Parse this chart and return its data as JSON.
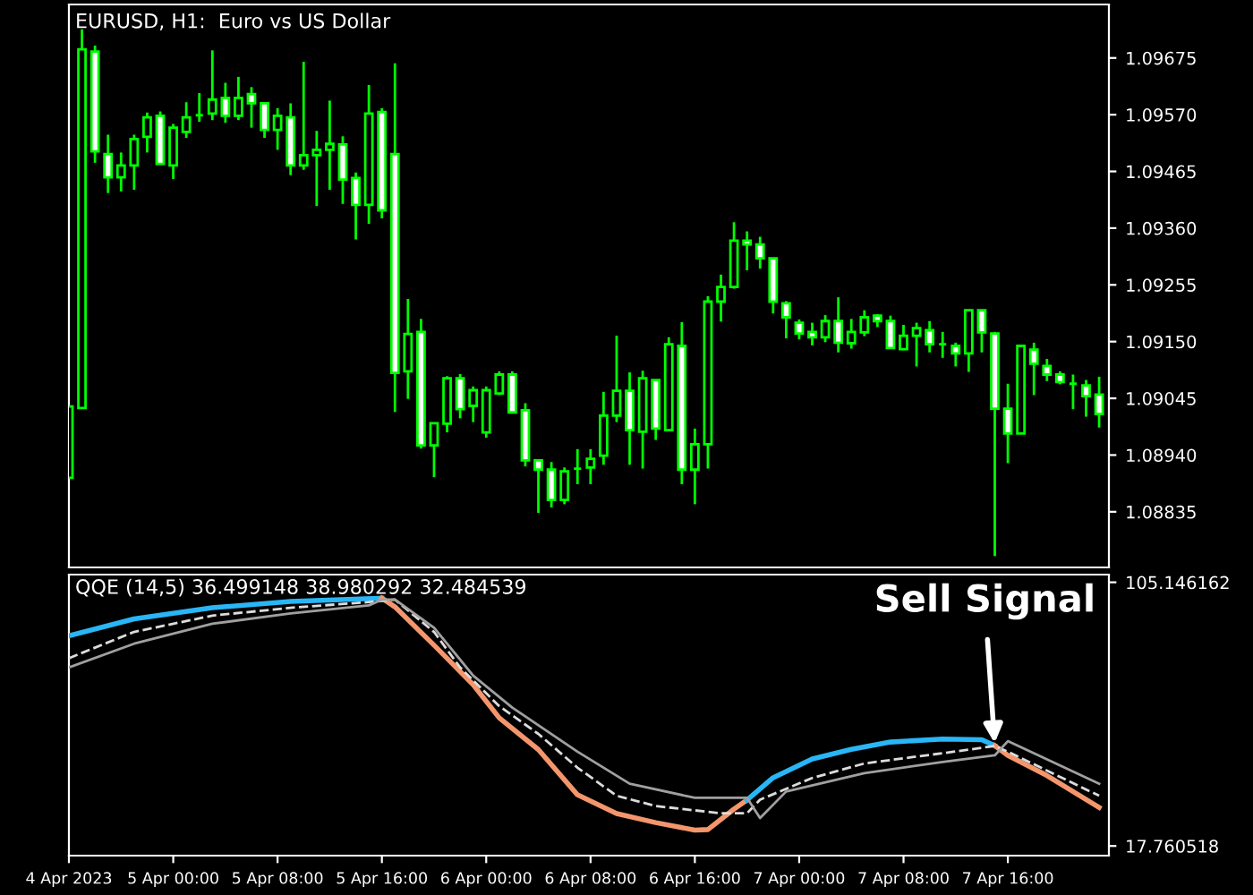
{
  "chart_data": [
    {
      "type": "candlestick",
      "title": "EURUSD, H1:  Euro vs US Dollar",
      "color": "#00ff00",
      "x": [
        "2023-04-04T16:00",
        "2023-04-04T17:00",
        "2023-04-04T18:00",
        "2023-04-04T19:00",
        "2023-04-04T20:00",
        "2023-04-04T21:00",
        "2023-04-04T22:00",
        "2023-04-04T23:00",
        "2023-04-05T00:00",
        "2023-04-05T01:00",
        "2023-04-05T02:00",
        "2023-04-05T03:00",
        "2023-04-05T04:00",
        "2023-04-05T05:00",
        "2023-04-05T06:00",
        "2023-04-05T07:00",
        "2023-04-05T08:00",
        "2023-04-05T09:00",
        "2023-04-05T10:00",
        "2023-04-05T11:00",
        "2023-04-05T12:00",
        "2023-04-05T13:00",
        "2023-04-05T14:00",
        "2023-04-05T15:00",
        "2023-04-05T16:00",
        "2023-04-05T17:00",
        "2023-04-05T18:00",
        "2023-04-05T19:00",
        "2023-04-05T20:00",
        "2023-04-05T21:00",
        "2023-04-05T22:00",
        "2023-04-05T23:00",
        "2023-04-06T00:00",
        "2023-04-06T01:00",
        "2023-04-06T02:00",
        "2023-04-06T03:00",
        "2023-04-06T04:00",
        "2023-04-06T05:00",
        "2023-04-06T06:00",
        "2023-04-06T07:00",
        "2023-04-06T08:00",
        "2023-04-06T09:00",
        "2023-04-06T10:00",
        "2023-04-06T11:00",
        "2023-04-06T12:00",
        "2023-04-06T13:00",
        "2023-04-06T14:00",
        "2023-04-06T15:00",
        "2023-04-06T16:00",
        "2023-04-06T17:00",
        "2023-04-06T18:00",
        "2023-04-06T19:00",
        "2023-04-06T20:00",
        "2023-04-06T21:00",
        "2023-04-06T22:00",
        "2023-04-06T23:00",
        "2023-04-07T00:00",
        "2023-04-07T01:00",
        "2023-04-07T02:00",
        "2023-04-07T03:00",
        "2023-04-07T04:00",
        "2023-04-07T05:00",
        "2023-04-07T06:00",
        "2023-04-07T07:00",
        "2023-04-07T08:00",
        "2023-04-07T09:00",
        "2023-04-07T10:00",
        "2023-04-07T11:00",
        "2023-04-07T12:00",
        "2023-04-07T13:00",
        "2023-04-07T14:00",
        "2023-04-07T15:00",
        "2023-04-07T16:00",
        "2023-04-07T17:00",
        "2023-04-07T18:00",
        "2023-04-07T19:00",
        "2023-04-07T20:00",
        "2023-04-07T21:00",
        "2023-04-07T22:00",
        "2023-04-07T23:00"
      ],
      "ohlc": [
        [
          1.08898,
          1.0903,
          1.08898,
          1.0903
        ],
        [
          1.09027,
          1.09728,
          1.09027,
          1.09691
        ],
        [
          1.09687,
          1.09698,
          1.09481,
          1.09502
        ],
        [
          1.09497,
          1.09533,
          1.09425,
          1.09454
        ],
        [
          1.09454,
          1.095,
          1.09428,
          1.09476
        ],
        [
          1.09476,
          1.09533,
          1.09431,
          1.09525
        ],
        [
          1.09529,
          1.09574,
          1.095,
          1.09565
        ],
        [
          1.09568,
          1.09576,
          1.09479,
          1.09479
        ],
        [
          1.09476,
          1.09553,
          1.09451,
          1.09546
        ],
        [
          1.09538,
          1.09593,
          1.09527,
          1.09565
        ],
        [
          1.09569,
          1.0961,
          1.09557,
          1.09569
        ],
        [
          1.09572,
          1.09689,
          1.0956,
          1.09598
        ],
        [
          1.09601,
          1.09629,
          1.09555,
          1.09568
        ],
        [
          1.09568,
          1.0964,
          1.0956,
          1.09601
        ],
        [
          1.09608,
          1.09621,
          1.09546,
          1.09591
        ],
        [
          1.09591,
          1.09591,
          1.09527,
          1.09542
        ],
        [
          1.09542,
          1.09582,
          1.09505,
          1.09568
        ],
        [
          1.09565,
          1.09591,
          1.09458,
          1.09476
        ],
        [
          1.09476,
          1.09668,
          1.09468,
          1.09495
        ],
        [
          1.09495,
          1.0954,
          1.09401,
          1.09505
        ],
        [
          1.09505,
          1.09596,
          1.09431,
          1.09516
        ],
        [
          1.09515,
          1.0953,
          1.09405,
          1.0945
        ],
        [
          1.09453,
          1.09463,
          1.09339,
          1.09403
        ],
        [
          1.09403,
          1.09625,
          1.09368,
          1.09572
        ],
        [
          1.09575,
          1.09582,
          1.09378,
          1.09393
        ],
        [
          1.09497,
          1.09665,
          1.0902,
          1.09092
        ],
        [
          1.09095,
          1.09229,
          1.09044,
          1.09164
        ],
        [
          1.09168,
          1.09192,
          1.08952,
          1.08958
        ],
        [
          1.08958,
          1.08999,
          1.08899,
          1.08999
        ],
        [
          1.08998,
          1.09086,
          1.08982,
          1.09082
        ],
        [
          1.09082,
          1.0909,
          1.09008,
          1.09025
        ],
        [
          1.09031,
          1.09067,
          1.09001,
          1.0906
        ],
        [
          1.08982,
          1.09067,
          1.08972,
          1.0906
        ],
        [
          1.09054,
          1.09095,
          1.09051,
          1.09089
        ],
        [
          1.09089,
          1.09095,
          1.09019,
          1.09019
        ],
        [
          1.09023,
          1.09036,
          1.08919,
          1.0893
        ],
        [
          1.0893,
          1.0893,
          1.08833,
          1.08913
        ],
        [
          1.08913,
          1.08927,
          1.08843,
          1.08857
        ],
        [
          1.08857,
          1.08917,
          1.08849,
          1.0891
        ],
        [
          1.08915,
          1.08951,
          1.08886,
          1.08915
        ],
        [
          1.08917,
          1.08951,
          1.08886,
          1.08933
        ],
        [
          1.08939,
          1.09057,
          1.08922,
          1.09013
        ],
        [
          1.09013,
          1.09161,
          1.09001,
          1.09059
        ],
        [
          1.09059,
          1.09093,
          1.08922,
          1.08986
        ],
        [
          1.08983,
          1.09096,
          1.08915,
          1.09082
        ],
        [
          1.09079,
          1.09079,
          1.08968,
          1.08989
        ],
        [
          1.08986,
          1.09158,
          1.08986,
          1.09145
        ],
        [
          1.09142,
          1.09186,
          1.08886,
          1.08913
        ],
        [
          1.08913,
          1.08989,
          1.08849,
          1.0896
        ],
        [
          1.0896,
          1.09234,
          1.08915,
          1.09224
        ],
        [
          1.09224,
          1.09274,
          1.09187,
          1.09251
        ],
        [
          1.09251,
          1.09371,
          1.09248,
          1.09337
        ],
        [
          1.09337,
          1.09354,
          1.09282,
          1.0933
        ],
        [
          1.0933,
          1.09344,
          1.09285,
          1.09304
        ],
        [
          1.09304,
          1.09304,
          1.09202,
          1.09224
        ],
        [
          1.09221,
          1.09225,
          1.09156,
          1.09195
        ],
        [
          1.09185,
          1.09191,
          1.09154,
          1.09165
        ],
        [
          1.09168,
          1.09185,
          1.09143,
          1.09158
        ],
        [
          1.09158,
          1.09199,
          1.09149,
          1.09188
        ],
        [
          1.09188,
          1.09232,
          1.0913,
          1.09148
        ],
        [
          1.09147,
          1.09192,
          1.09137,
          1.09168
        ],
        [
          1.09167,
          1.09208,
          1.0916,
          1.09195
        ],
        [
          1.09198,
          1.09201,
          1.09177,
          1.09188
        ],
        [
          1.09188,
          1.09198,
          1.09138,
          1.09138
        ],
        [
          1.09136,
          1.09181,
          1.09134,
          1.09161
        ],
        [
          1.09161,
          1.09185,
          1.09104,
          1.09175
        ],
        [
          1.09171,
          1.09188,
          1.0913,
          1.09145
        ],
        [
          1.09145,
          1.09168,
          1.0912,
          1.09145
        ],
        [
          1.09142,
          1.09148,
          1.09104,
          1.09128
        ],
        [
          1.09128,
          1.09208,
          1.09094,
          1.09208
        ],
        [
          1.09208,
          1.09208,
          1.0913,
          1.09167
        ],
        [
          1.09165,
          1.09168,
          1.08753,
          1.09026
        ],
        [
          1.09026,
          1.09072,
          1.08925,
          1.0898
        ],
        [
          1.0898,
          1.09142,
          1.0898,
          1.09142
        ],
        [
          1.09135,
          1.09148,
          1.09051,
          1.09109
        ],
        [
          1.09105,
          1.09118,
          1.09077,
          1.09089
        ],
        [
          1.09089,
          1.09095,
          1.09071,
          1.09075
        ],
        [
          1.09072,
          1.09089,
          1.09025,
          1.09072
        ],
        [
          1.09069,
          1.09079,
          1.09011,
          1.09049
        ],
        [
          1.09052,
          1.09085,
          1.08991,
          1.09016
        ]
      ],
      "xlim": [
        "2023-04-04T16:00",
        "2023-04-07T23:45"
      ],
      "ylim": [
        1.08732,
        1.09774
      ],
      "yticks": [
        1.09675,
        {
          "value": 1.0957,
          "label": "1.09570"
        },
        1.09465,
        {
          "value": 1.0936,
          "label": "1.09360"
        },
        1.09255,
        {
          "value": 1.0915,
          "label": "1.09150"
        },
        1.09045,
        {
          "value": 1.0894,
          "label": "1.08940"
        },
        1.08835
      ],
      "tick_labels": "y"
    },
    {
      "type": "line",
      "title": "QQE (14,5) 36.499148 38.980292 32.484539",
      "series": [
        {
          "color": "#29b6f6",
          "x": [
            "2023-04-04T16:00",
            "2023-04-04T21:00",
            "2023-04-05T03:00",
            "2023-04-05T09:00",
            "2023-04-05T16:00"
          ],
          "values": [
            87.4,
            93.0,
            96.7,
            98.8,
            99.9
          ]
        },
        {
          "color": "#f4966c",
          "x": [
            "2023-04-05T16:00",
            "2023-04-05T17:00",
            "2023-04-05T20:00",
            "2023-04-05T23:00",
            "2023-04-06T01:00",
            "2023-04-06T04:00",
            "2023-04-06T07:00",
            "2023-04-06T10:00",
            "2023-04-06T13:00",
            "2023-04-06T16:00",
            "2023-04-06T17:00",
            "2023-04-06T19:00",
            "2023-04-06T20:00"
          ],
          "values": [
            99.9,
            97.0,
            84.3,
            71.2,
            60.2,
            49.7,
            34.7,
            28.5,
            25.5,
            23.0,
            23.2,
            30.0,
            33.0
          ]
        },
        {
          "color": "#29b6f6",
          "x": [
            "2023-04-06T20:00",
            "2023-04-06T22:00",
            "2023-04-07T01:00",
            "2023-04-07T04:00",
            "2023-04-07T07:00",
            "2023-04-07T11:00",
            "2023-04-07T14:00",
            "2023-04-07T15:00"
          ],
          "values": [
            33.0,
            40.4,
            46.6,
            49.8,
            52.2,
            53.2,
            53.0,
            51.0
          ]
        },
        {
          "color": "#f4966c",
          "x": [
            "2023-04-07T15:00",
            "2023-04-07T16:00",
            "2023-04-07T19:00",
            "2023-04-07T23:00"
          ],
          "values": [
            51.0,
            47.8,
            41.1,
            30.5
          ]
        },
        {
          "color": "#dcdcdc",
          "line_style": "dashed",
          "x": [
            "2023-04-04T16:00",
            "2023-04-04T21:00",
            "2023-04-05T03:00",
            "2023-04-05T09:00",
            "2023-04-05T15:00",
            "2023-04-05T17:00",
            "2023-04-05T20:00",
            "2023-04-05T22:00",
            "2023-04-06T01:00",
            "2023-04-06T04:00",
            "2023-04-06T07:00",
            "2023-04-06T10:00",
            "2023-04-06T13:00",
            "2023-04-06T18:00",
            "2023-04-06T20:00",
            "2023-04-06T21:00",
            "2023-04-07T01:00",
            "2023-04-07T05:00",
            "2023-04-07T11:00",
            "2023-04-07T15:00",
            "2023-04-07T16:00",
            "2023-04-07T23:00"
          ],
          "values": [
            80.0,
            88.7,
            94.1,
            96.7,
            98.6,
            99.4,
            88.7,
            76.9,
            64.1,
            54.9,
            43.7,
            34.4,
            31.0,
            28.6,
            28.6,
            33.1,
            40.3,
            45.1,
            48.5,
            50.9,
            49.0,
            34.4
          ]
        },
        {
          "color": "#a0a0a0",
          "x": [
            "2023-04-04T16:00",
            "2023-04-04T21:00",
            "2023-04-05T03:00",
            "2023-04-05T09:00",
            "2023-04-05T15:00",
            "2023-04-05T16:00",
            "2023-04-05T17:00",
            "2023-04-05T20:00",
            "2023-04-05T23:00",
            "2023-04-06T02:00",
            "2023-04-06T07:00",
            "2023-04-06T11:00",
            "2023-04-06T16:00",
            "2023-04-06T20:00",
            "2023-04-06T21:00",
            "2023-04-06T23:00",
            "2023-04-07T05:00",
            "2023-04-07T11:00",
            "2023-04-07T15:00",
            "2023-04-07T16:00",
            "2023-04-07T23:00"
          ],
          "values": [
            76.9,
            84.8,
            91.4,
            94.8,
            97.5,
            99.4,
            99.4,
            90.1,
            74.2,
            63.6,
            49.0,
            38.4,
            33.7,
            33.7,
            27.0,
            35.8,
            41.9,
            45.6,
            47.8,
            52.5,
            38.4
          ]
        }
      ],
      "annotations": [
        {
          "text": "Sell Signal",
          "x": "2023-04-07T15:00",
          "y": 51.0
        }
      ],
      "xlim": [
        "2023-04-04T16:00",
        "2023-04-07T23:45"
      ],
      "xticks": [
        {
          "value": "2023-04-04T16:00",
          "label": "4 Apr 2023"
        },
        {
          "value": "2023-04-05T00:00",
          "label": "5 Apr 00:00"
        },
        {
          "value": "2023-04-05T08:00",
          "label": "5 Apr 08:00"
        },
        {
          "value": "2023-04-05T16:00",
          "label": "5 Apr 16:00"
        },
        {
          "value": "2023-04-06T00:00",
          "label": "6 Apr 00:00"
        },
        {
          "value": "2023-04-06T08:00",
          "label": "6 Apr 08:00"
        },
        {
          "value": "2023-04-06T16:00",
          "label": "6 Apr 16:00"
        },
        {
          "value": "2023-04-07T00:00",
          "label": "7 Apr 00:00"
        },
        {
          "value": "2023-04-07T08:00",
          "label": "7 Apr 08:00"
        },
        {
          "value": "2023-04-07T16:00",
          "label": "7 Apr 16:00"
        }
      ],
      "ylim": [
        14.56,
        107.7
      ],
      "yticks": [
        105.146162,
        17.760518
      ]
    }
  ]
}
